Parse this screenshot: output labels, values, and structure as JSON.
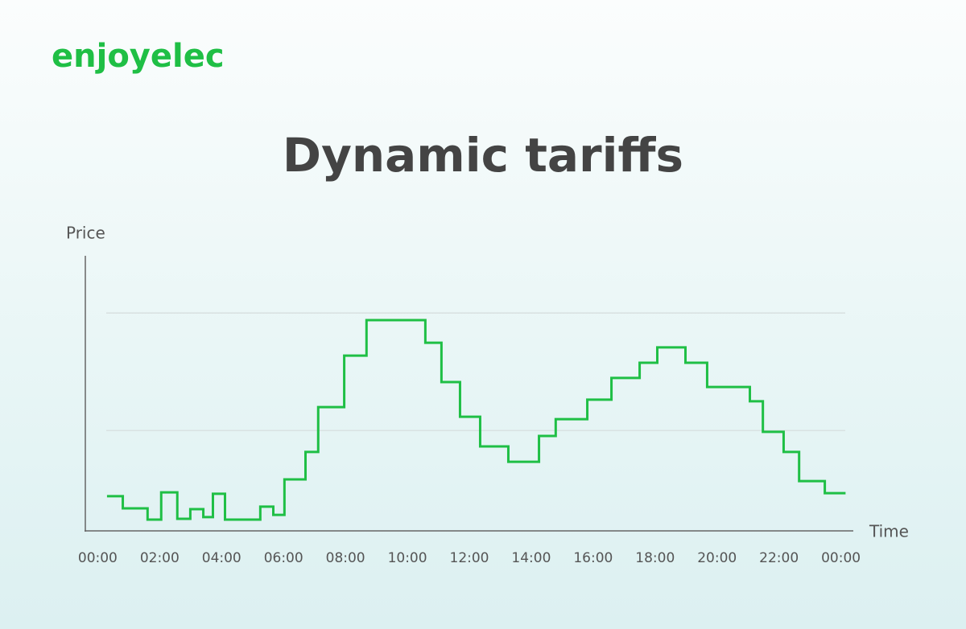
{
  "brand": "enjoyelec",
  "chart_data": {
    "type": "step",
    "title": "Dynamic tariffs",
    "y_label": "Price",
    "x_label": "Time",
    "color": "#1fbf45",
    "x": [
      0.3,
      0.81,
      1.61,
      2.05,
      2.57,
      2.99,
      3.41,
      3.72,
      4.11,
      5.25,
      5.67,
      6.03,
      6.71,
      7.12,
      7.96,
      8.68,
      10.58,
      11.1,
      11.7,
      12.35,
      13.26,
      14.25,
      14.79,
      15.81,
      16.59,
      17.5,
      18.07,
      18.98,
      19.68,
      21.06,
      21.48,
      22.15,
      22.65,
      23.48,
      24.15
    ],
    "values": [
      12.6,
      8.2,
      4.1,
      14.0,
      4.4,
      7.9,
      5.0,
      13.5,
      4.1,
      8.8,
      5.8,
      18.7,
      28.7,
      45.0,
      63.7,
      76.6,
      68.4,
      54.1,
      41.5,
      30.7,
      25.1,
      34.5,
      40.6,
      47.7,
      55.6,
      61.1,
      66.7,
      61.1,
      52.3,
      47.1,
      36.0,
      28.7,
      18.1,
      13.7,
      13.7
    ],
    "xlim": [
      -0.4,
      24.4
    ],
    "ylim": [
      0,
      100
    ],
    "gridlines": [
      36.5,
      79.2
    ],
    "xticks": [
      {
        "value": 0,
        "label": "00:00"
      },
      {
        "value": 2,
        "label": "02:00"
      },
      {
        "value": 4,
        "label": "04:00"
      },
      {
        "value": 6,
        "label": "06:00"
      },
      {
        "value": 8,
        "label": "08:00"
      },
      {
        "value": 10,
        "label": "10:00"
      },
      {
        "value": 12,
        "label": "12:00"
      },
      {
        "value": 14,
        "label": "14:00"
      },
      {
        "value": 16,
        "label": "16:00"
      },
      {
        "value": 18,
        "label": "18:00"
      },
      {
        "value": 20,
        "label": "20:00"
      },
      {
        "value": 22,
        "label": "22:00"
      },
      {
        "value": 24,
        "label": "00:00"
      }
    ]
  }
}
